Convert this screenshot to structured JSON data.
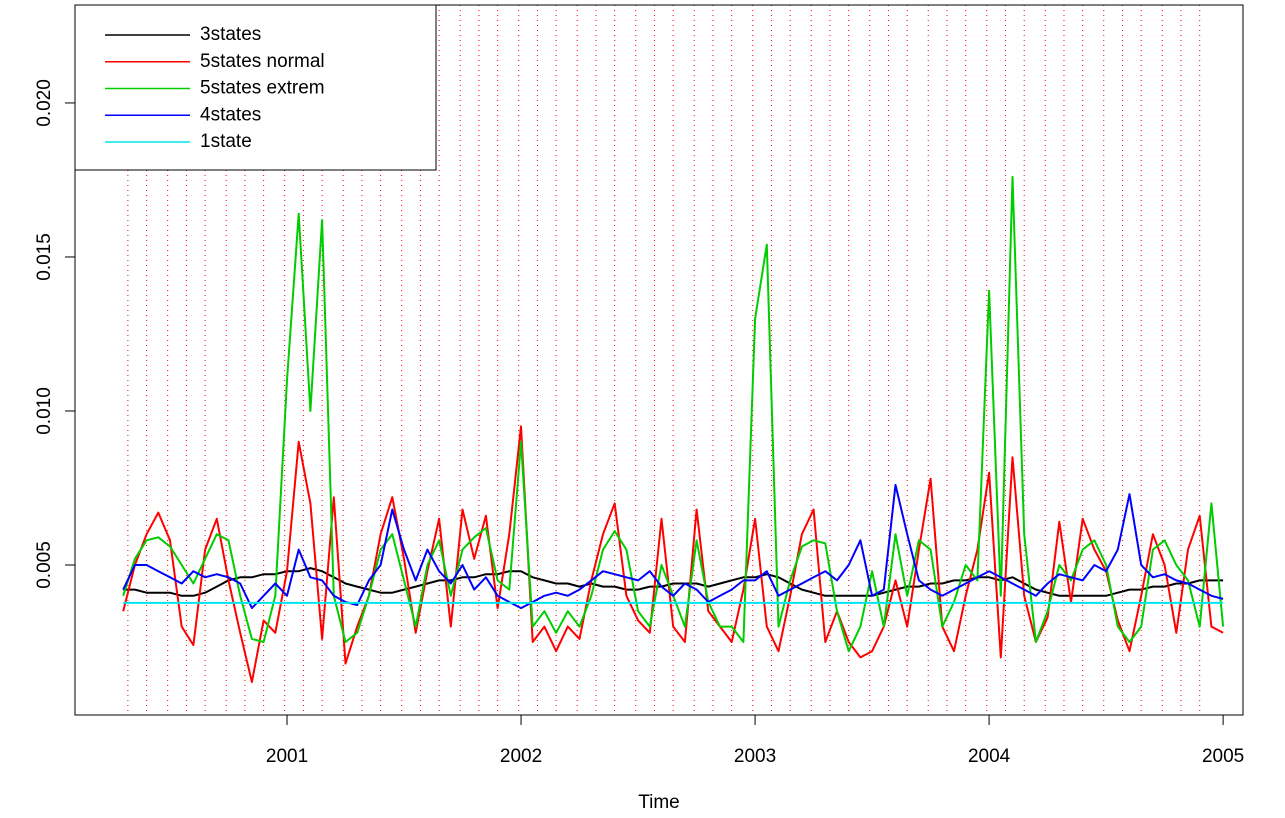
{
  "chart_data": {
    "type": "line",
    "xlabel": "Time",
    "xlim": [
      2000.094,
      2005.085
    ],
    "ylim": [
      0.00013,
      0.02318
    ],
    "xticks": [
      2001,
      2002,
      2003,
      2004,
      2005
    ],
    "yticks": [
      0.005,
      {
        "value": 0.01,
        "label": "0.010"
      },
      0.015,
      {
        "value": 0.02,
        "label": "0.020"
      }
    ],
    "legend": "top-left",
    "vlines_color": "#ff0000",
    "vlines": [
      2000.32,
      2000.4,
      2000.49,
      2000.57,
      2000.65,
      2000.74,
      2000.82,
      2000.9,
      2000.99,
      2001.07,
      2001.15,
      2001.24,
      2001.32,
      2001.4,
      2001.49,
      2001.57,
      2001.65,
      2001.74,
      2001.82,
      2001.9,
      2001.99,
      2002.07,
      2002.15,
      2002.24,
      2002.32,
      2002.4,
      2002.49,
      2002.57,
      2002.65,
      2002.74,
      2002.82,
      2002.9,
      2002.99,
      2003.07,
      2003.15,
      2003.24,
      2003.32,
      2003.4,
      2003.49,
      2003.57,
      2003.65,
      2003.74,
      2003.82,
      2003.9,
      2003.99,
      2004.07,
      2004.15,
      2004.24,
      2004.32,
      2004.4,
      2004.49,
      2004.57,
      2004.65,
      2004.74,
      2004.82,
      2004.9
    ],
    "x": [
      2000.3,
      2000.35,
      2000.4,
      2000.45,
      2000.5,
      2000.55,
      2000.6,
      2000.65,
      2000.7,
      2000.75,
      2000.8,
      2000.85,
      2000.9,
      2000.95,
      2001.0,
      2001.05,
      2001.1,
      2001.15,
      2001.2,
      2001.25,
      2001.3,
      2001.35,
      2001.4,
      2001.45,
      2001.5,
      2001.55,
      2001.6,
      2001.65,
      2001.7,
      2001.75,
      2001.8,
      2001.85,
      2001.9,
      2001.95,
      2002.0,
      2002.05,
      2002.1,
      2002.15,
      2002.2,
      2002.25,
      2002.3,
      2002.35,
      2002.4,
      2002.45,
      2002.5,
      2002.55,
      2002.6,
      2002.65,
      2002.7,
      2002.75,
      2002.8,
      2002.85,
      2002.9,
      2002.95,
      2003.0,
      2003.05,
      2003.1,
      2003.15,
      2003.2,
      2003.25,
      2003.3,
      2003.35,
      2003.4,
      2003.45,
      2003.5,
      2003.55,
      2003.6,
      2003.65,
      2003.7,
      2003.75,
      2003.8,
      2003.85,
      2003.9,
      2003.95,
      2004.0,
      2004.05,
      2004.1,
      2004.15,
      2004.2,
      2004.25,
      2004.3,
      2004.35,
      2004.4,
      2004.45,
      2004.5,
      2004.55,
      2004.6,
      2004.65,
      2004.7,
      2004.75,
      2004.8,
      2004.85,
      2004.9,
      2004.95,
      2005.0
    ],
    "series": [
      {
        "name": "3states",
        "color": "#000000",
        "values": [
          0.0042,
          0.0042,
          0.0041,
          0.0041,
          0.0041,
          0.004,
          0.004,
          0.0041,
          0.0043,
          0.0045,
          0.0046,
          0.0046,
          0.0047,
          0.0047,
          0.0048,
          0.0048,
          0.0049,
          0.0048,
          0.0046,
          0.0044,
          0.0043,
          0.0042,
          0.0041,
          0.0041,
          0.0042,
          0.0043,
          0.0044,
          0.0045,
          0.0045,
          0.0046,
          0.0046,
          0.0047,
          0.0047,
          0.0048,
          0.0048,
          0.0046,
          0.0045,
          0.0044,
          0.0044,
          0.0043,
          0.0044,
          0.0043,
          0.0043,
          0.0042,
          0.0042,
          0.0043,
          0.0043,
          0.0044,
          0.0044,
          0.0044,
          0.0043,
          0.0044,
          0.0045,
          0.0046,
          0.0046,
          0.0047,
          0.0046,
          0.0044,
          0.0042,
          0.0041,
          0.004,
          0.004,
          0.004,
          0.004,
          0.004,
          0.0041,
          0.0042,
          0.0043,
          0.0043,
          0.0044,
          0.0044,
          0.0045,
          0.0045,
          0.0046,
          0.0046,
          0.0045,
          0.0046,
          0.0044,
          0.0042,
          0.0041,
          0.004,
          0.004,
          0.004,
          0.004,
          0.004,
          0.0041,
          0.0042,
          0.0042,
          0.0043,
          0.0043,
          0.0044,
          0.0044,
          0.0045,
          0.0045,
          0.0045
        ]
      },
      {
        "name": "5states normal",
        "color": "#ff0000",
        "values": [
          0.0035,
          0.005,
          0.006,
          0.0067,
          0.0058,
          0.003,
          0.0024,
          0.0055,
          0.0065,
          0.0045,
          0.0028,
          0.0012,
          0.0032,
          0.0028,
          0.0048,
          0.009,
          0.007,
          0.0026,
          0.0072,
          0.0018,
          0.003,
          0.004,
          0.006,
          0.0072,
          0.0052,
          0.0028,
          0.0048,
          0.0065,
          0.003,
          0.0068,
          0.0052,
          0.0066,
          0.0036,
          0.006,
          0.0095,
          0.0025,
          0.003,
          0.0022,
          0.003,
          0.0026,
          0.0045,
          0.006,
          0.007,
          0.004,
          0.0032,
          0.0028,
          0.0065,
          0.003,
          0.0025,
          0.0068,
          0.0035,
          0.003,
          0.0025,
          0.0042,
          0.0065,
          0.003,
          0.0022,
          0.004,
          0.006,
          0.0068,
          0.0025,
          0.0035,
          0.0025,
          0.002,
          0.0022,
          0.003,
          0.0045,
          0.003,
          0.0055,
          0.0078,
          0.003,
          0.0022,
          0.004,
          0.0055,
          0.008,
          0.002,
          0.0085,
          0.004,
          0.0025,
          0.0033,
          0.0064,
          0.0038,
          0.0065,
          0.0055,
          0.0048,
          0.0032,
          0.0022,
          0.004,
          0.006,
          0.005,
          0.0028,
          0.0055,
          0.0066,
          0.003,
          0.0028
        ]
      },
      {
        "name": "5states extrem",
        "color": "#00cd00",
        "values": [
          0.004,
          0.0052,
          0.0058,
          0.0059,
          0.0056,
          0.005,
          0.0044,
          0.0052,
          0.006,
          0.0058,
          0.004,
          0.0026,
          0.0025,
          0.004,
          0.011,
          0.0164,
          0.01,
          0.0162,
          0.004,
          0.0025,
          0.0028,
          0.004,
          0.0055,
          0.006,
          0.0045,
          0.003,
          0.005,
          0.0058,
          0.004,
          0.0055,
          0.0059,
          0.0062,
          0.0045,
          0.0042,
          0.009,
          0.003,
          0.0035,
          0.0028,
          0.0035,
          0.003,
          0.004,
          0.0055,
          0.0061,
          0.0055,
          0.0035,
          0.003,
          0.005,
          0.004,
          0.003,
          0.0058,
          0.0038,
          0.003,
          0.003,
          0.0025,
          0.013,
          0.0154,
          0.003,
          0.0045,
          0.0056,
          0.0058,
          0.0057,
          0.0035,
          0.0022,
          0.003,
          0.0048,
          0.003,
          0.006,
          0.004,
          0.0058,
          0.0055,
          0.003,
          0.0038,
          0.005,
          0.0045,
          0.0139,
          0.004,
          0.0176,
          0.006,
          0.0025,
          0.0035,
          0.005,
          0.0045,
          0.0055,
          0.0058,
          0.005,
          0.003,
          0.0025,
          0.003,
          0.0055,
          0.0058,
          0.005,
          0.0045,
          0.003,
          0.007,
          0.003
        ]
      },
      {
        "name": "4states",
        "color": "#0000ff",
        "values": [
          0.0042,
          0.005,
          0.005,
          0.0048,
          0.0046,
          0.0044,
          0.0048,
          0.0046,
          0.0047,
          0.0046,
          0.0044,
          0.0036,
          0.004,
          0.0044,
          0.004,
          0.0055,
          0.0046,
          0.0045,
          0.004,
          0.0038,
          0.0037,
          0.0045,
          0.005,
          0.0068,
          0.0055,
          0.0045,
          0.0055,
          0.0048,
          0.0044,
          0.005,
          0.0042,
          0.0046,
          0.004,
          0.0038,
          0.0036,
          0.0038,
          0.004,
          0.0041,
          0.004,
          0.0042,
          0.0045,
          0.0048,
          0.0047,
          0.0046,
          0.0045,
          0.0048,
          0.0043,
          0.004,
          0.0044,
          0.0042,
          0.0038,
          0.004,
          0.0042,
          0.0045,
          0.0045,
          0.0048,
          0.004,
          0.0042,
          0.0044,
          0.0046,
          0.0048,
          0.0045,
          0.005,
          0.0058,
          0.004,
          0.0042,
          0.0076,
          0.006,
          0.0045,
          0.0042,
          0.004,
          0.0042,
          0.0044,
          0.0046,
          0.0048,
          0.0046,
          0.0044,
          0.0042,
          0.004,
          0.0044,
          0.0047,
          0.0046,
          0.0045,
          0.005,
          0.0048,
          0.0055,
          0.0073,
          0.005,
          0.0046,
          0.0047,
          0.0045,
          0.0044,
          0.0042,
          0.004,
          0.0039
        ]
      },
      {
        "name": "1state",
        "color": "#00e5ee",
        "x": [
          2000.3,
          2005.0
        ],
        "values": [
          0.00377,
          0.00377
        ]
      }
    ]
  }
}
